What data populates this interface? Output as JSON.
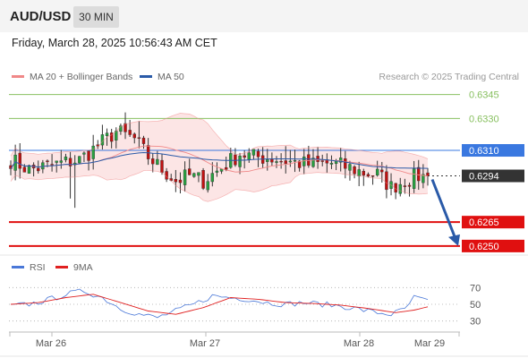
{
  "header": {
    "symbol": "AUD/USD",
    "timeframe": "30 MIN"
  },
  "datetime": "Friday, March 28, 2025 10:56:43 AM CET",
  "legend": {
    "ma20_bb": "MA 20 + Bollinger Bands",
    "ma50": "MA 50",
    "rsi": "RSI",
    "ma9": "9MA"
  },
  "copyright": "Research © 2025 Trading Central",
  "colors": {
    "bollinger": "#f08888",
    "ma50": "#2a5aa8",
    "rsi": "#4a78d8",
    "ma9": "#e02020",
    "resistance": "#88c060",
    "pivot": "#3a78e0",
    "support": "#e01010",
    "arrow": "#2a5aa8",
    "bull": "#28a040",
    "bear": "#c01010"
  },
  "chart_data": [
    {
      "type": "candlestick",
      "x_labels": [
        "Mar 26",
        "Mar 27",
        "Mar 28",
        "Mar 29"
      ],
      "ylim": [
        0.6246,
        0.6351
      ],
      "levels": [
        {
          "value": "0.6345",
          "kind": "resistance"
        },
        {
          "value": "0.6330",
          "kind": "resistance"
        },
        {
          "value": "0.6310",
          "kind": "pivot"
        },
        {
          "value": "0.6265",
          "kind": "support"
        },
        {
          "value": "0.6250",
          "kind": "support"
        }
      ],
      "last_price": "0.6294",
      "series": [
        {
          "name": "MA 20 + Bollinger Bands"
        },
        {
          "name": "MA 50"
        }
      ],
      "anchors": [
        [
          0,
          0.6304
        ],
        [
          4,
          0.6298
        ],
        [
          8,
          0.63
        ],
        [
          11,
          0.6302
        ],
        [
          15,
          0.6304
        ],
        [
          19,
          0.6313
        ],
        [
          23,
          0.6322
        ],
        [
          27,
          0.6317
        ],
        [
          30,
          0.6306
        ],
        [
          33,
          0.6298
        ],
        [
          36,
          0.6291
        ],
        [
          39,
          0.6294
        ],
        [
          42,
          0.6291
        ],
        [
          45,
          0.6297
        ],
        [
          50,
          0.6308
        ],
        [
          53,
          0.6306
        ],
        [
          57,
          0.6305
        ],
        [
          61,
          0.6303
        ],
        [
          65,
          0.6301
        ],
        [
          70,
          0.6302
        ],
        [
          74,
          0.6299
        ],
        [
          77,
          0.6296
        ],
        [
          80,
          0.6295
        ],
        [
          83,
          0.6287
        ],
        [
          86,
          0.6291
        ],
        [
          89,
          0.6294
        ],
        [
          91,
          0.6293
        ]
      ],
      "forecast": {
        "from": 0.6294,
        "to": 0.625
      }
    },
    {
      "type": "line",
      "name": "RSI",
      "ylim": [
        20,
        80
      ],
      "yticks": [
        "70",
        "50",
        "30"
      ],
      "series": [
        {
          "name": "RSI",
          "anchors": [
            [
              0,
              48
            ],
            [
              4,
              50
            ],
            [
              8,
              55
            ],
            [
              12,
              62
            ],
            [
              16,
              66
            ],
            [
              20,
              58
            ],
            [
              24,
              45
            ],
            [
              28,
              38
            ],
            [
              32,
              34
            ],
            [
              36,
              42
            ],
            [
              40,
              50
            ],
            [
              44,
              60
            ],
            [
              48,
              58
            ],
            [
              52,
              56
            ],
            [
              56,
              52
            ],
            [
              60,
              50
            ],
            [
              64,
              52
            ],
            [
              68,
              50
            ],
            [
              72,
              48
            ],
            [
              76,
              44
            ],
            [
              80,
              40
            ],
            [
              83,
              38
            ],
            [
              86,
              44
            ],
            [
              88,
              58
            ],
            [
              91,
              54
            ]
          ]
        },
        {
          "name": "9MA",
          "anchors": [
            [
              0,
              50
            ],
            [
              6,
              52
            ],
            [
              12,
              58
            ],
            [
              18,
              62
            ],
            [
              24,
              52
            ],
            [
              30,
              42
            ],
            [
              36,
              38
            ],
            [
              42,
              46
            ],
            [
              48,
              58
            ],
            [
              54,
              56
            ],
            [
              60,
              52
            ],
            [
              66,
              51
            ],
            [
              72,
              49
            ],
            [
              78,
              45
            ],
            [
              84,
              40
            ],
            [
              88,
              43
            ],
            [
              91,
              47
            ]
          ]
        }
      ]
    }
  ]
}
